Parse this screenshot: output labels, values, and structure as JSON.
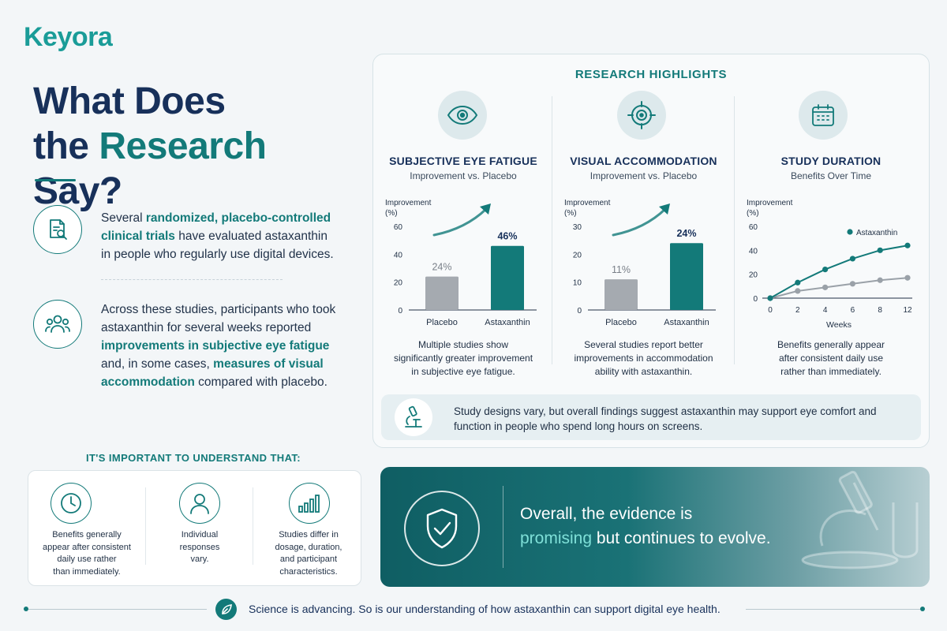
{
  "brand": {
    "name": "Keyora"
  },
  "headline": {
    "line1": "What Does",
    "line2_pre": "the ",
    "line2_accent": "Research",
    "line2_post": " Say?"
  },
  "intro": [
    {
      "icon": "document-search-icon",
      "segments": [
        {
          "t": "Several ",
          "b": false
        },
        {
          "t": "randomized, placebo-controlled clinical trials",
          "b": true
        },
        {
          "t": " have evaluated astaxanthin in people who regularly use digital devices.",
          "b": false
        }
      ]
    },
    {
      "icon": "people-group-icon",
      "segments": [
        {
          "t": "Across these studies, participants who took astaxanthin for several weeks reported ",
          "b": false
        },
        {
          "t": "improvements in subjective eye fatigue",
          "b": true
        },
        {
          "t": " and, in some cases, ",
          "b": false
        },
        {
          "t": "measures of visual accommodation",
          "b": true
        },
        {
          "t": " compared with placebo.",
          "b": false
        }
      ]
    }
  ],
  "research": {
    "title": "RESEARCH HIGHLIGHTS",
    "columns": [
      {
        "icon": "eye-icon",
        "heading": "SUBJECTIVE EYE FATIGUE",
        "sub": "Improvement vs. Placebo",
        "desc_lines": [
          "Multiple studies show",
          "significantly greater improvement",
          "in subjective eye fatigue."
        ]
      },
      {
        "icon": "target-icon",
        "heading": "VISUAL ACCOMMODATION",
        "sub": "Improvement vs. Placebo",
        "desc_lines": [
          "Several studies report better",
          "improvements in accommodation",
          "ability with astaxanthin."
        ]
      },
      {
        "icon": "calendar-icon",
        "heading": "STUDY DURATION",
        "sub": "Benefits Over Time",
        "desc_lines": [
          "Benefits generally appear",
          "after consistent daily use",
          "rather than immediately."
        ]
      }
    ],
    "note": "Study designs vary, but overall findings suggest astaxanthin may support eye comfort and function in people who spend long hours on screens."
  },
  "chart_data": [
    {
      "type": "bar",
      "ylabel": "Improvement (%)",
      "categories": [
        "Placebo",
        "Astaxanthin"
      ],
      "values": [
        24,
        46
      ],
      "labels": [
        "24%",
        "46%"
      ],
      "yticks": [
        0,
        20,
        40,
        60
      ],
      "ylim": [
        0,
        60
      ]
    },
    {
      "type": "bar",
      "ylabel": "Improvement (%)",
      "categories": [
        "Placebo",
        "Astaxanthin"
      ],
      "values": [
        11,
        24
      ],
      "labels": [
        "11%",
        "24%"
      ],
      "yticks": [
        0,
        10,
        20,
        30
      ],
      "ylim": [
        0,
        30
      ]
    },
    {
      "type": "line",
      "ylabel": "Improvement (%)",
      "xlabel": "Weeks",
      "x": [
        0,
        2,
        4,
        6,
        8,
        12
      ],
      "xticks": [
        0,
        2,
        4,
        6,
        8,
        12
      ],
      "yticks": [
        0,
        20,
        40,
        60
      ],
      "ylim": [
        0,
        60
      ],
      "series": [
        {
          "name": "Astaxanthin",
          "values": [
            0,
            13,
            24,
            33,
            40,
            44
          ],
          "color": "#137a79"
        },
        {
          "values": [
            0,
            6,
            9,
            12,
            15,
            17
          ],
          "color": "#9aa1a8"
        }
      ]
    }
  ],
  "important": {
    "title": "IT'S IMPORTANT TO UNDERSTAND THAT:",
    "items": [
      {
        "icon": "clock-icon",
        "lines": [
          "Benefits generally",
          "appear after consistent",
          "daily use rather",
          "than immediately."
        ]
      },
      {
        "icon": "person-icon",
        "lines": [
          "Individual",
          "responses",
          "vary."
        ]
      },
      {
        "icon": "bar-chart-icon",
        "lines": [
          "Studies differ in",
          "dosage, duration,",
          "and participant",
          "characteristics."
        ]
      }
    ]
  },
  "banner": {
    "line1": "Overall, the evidence is",
    "highlight": "promising",
    "line2_rest": " but continues to evolve."
  },
  "footer": {
    "text": "Science is advancing. So is our understanding of how astaxanthin can support digital eye health."
  },
  "colors": {
    "teal": "#137a79",
    "navy": "#17305a",
    "grey_bar": "#a5aab0"
  }
}
